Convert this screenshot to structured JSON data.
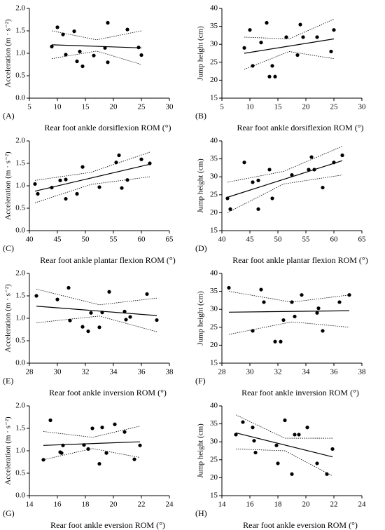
{
  "chart_data": [
    {
      "type": "scatter",
      "panel_label": "(A)",
      "xlabel": "Rear foot ankle dorsiflexion ROM (°)",
      "ylabel": "Acceleration (m · s⁻²)",
      "color": "#000000",
      "x": [
        9,
        10,
        11,
        11.5,
        13,
        13.5,
        14,
        14.5,
        16.5,
        18.5,
        19,
        19,
        22.5,
        24.5,
        25
      ],
      "values": [
        1.15,
        1.58,
        1.42,
        0.97,
        1.49,
        0.82,
        1.04,
        0.71,
        0.95,
        1.12,
        1.68,
        0.8,
        1.53,
        1.13,
        0.96
      ],
      "fit": {
        "x": [
          9,
          25
        ],
        "values": [
          1.19,
          1.12
        ]
      },
      "ci": {
        "x": [
          9,
          17,
          25
        ],
        "upper": [
          1.5,
          1.3,
          1.5
        ],
        "lower": [
          0.88,
          1.05,
          0.75
        ]
      },
      "xlim": [
        5,
        30
      ],
      "xticks": [
        5,
        10,
        15,
        20,
        25,
        30
      ],
      "ylim": [
        0,
        2
      ],
      "yticks": [
        {
          "value": 0,
          "label": "0.0"
        },
        0.5,
        {
          "value": 1,
          "label": "1.0"
        },
        1.5,
        {
          "value": 2,
          "label": "2.0"
        }
      ]
    },
    {
      "type": "scatter",
      "panel_label": "(B)",
      "xlabel": "Rear foot ankle dorsiflexion ROM (°)",
      "ylabel": "Jump height (cm)",
      "color": "#000000",
      "x": [
        9,
        10,
        10.5,
        12,
        13,
        13.5,
        14,
        14.5,
        16.5,
        18.5,
        19,
        19.5,
        22,
        24.5,
        25
      ],
      "values": [
        29,
        34,
        24,
        30.5,
        36,
        21,
        24,
        21,
        32,
        27,
        35.5,
        32,
        32,
        28,
        34
      ],
      "fit": {
        "x": [
          9,
          25
        ],
        "values": [
          27.5,
          31.5
        ]
      },
      "ci": {
        "x": [
          9,
          17,
          25
        ],
        "upper": [
          32,
          31.5,
          37
        ],
        "lower": [
          23,
          28,
          26
        ]
      },
      "xlim": [
        5,
        30
      ],
      "xticks": [
        5,
        10,
        15,
        20,
        25,
        30
      ],
      "ylim": [
        15,
        40
      ],
      "yticks": [
        15,
        20,
        25,
        30,
        35,
        40
      ]
    },
    {
      "type": "scatter",
      "panel_label": "(C)",
      "xlabel": "Rear foot ankle plantar flexion ROM (°)",
      "ylabel": "Acceleration (m · s⁻²)",
      "color": "#000000",
      "x": [
        41,
        41.5,
        44,
        45.5,
        46.5,
        46.5,
        48.5,
        49.5,
        52.5,
        55.5,
        56,
        56.5,
        57.5,
        60,
        61.5
      ],
      "values": [
        1.04,
        0.82,
        0.96,
        1.12,
        1.14,
        0.71,
        0.82,
        1.42,
        0.97,
        1.52,
        1.68,
        0.95,
        1.13,
        1.59,
        1.5
      ],
      "fit": {
        "x": [
          41,
          61.5
        ],
        "values": [
          0.88,
          1.48
        ]
      },
      "ci": {
        "x": [
          41,
          51,
          61.5
        ],
        "upper": [
          1.12,
          1.3,
          1.75
        ],
        "lower": [
          0.62,
          1.03,
          1.2
        ]
      },
      "xlim": [
        40,
        65
      ],
      "xticks": [
        40,
        45,
        50,
        55,
        60,
        65
      ],
      "ylim": [
        0,
        2
      ],
      "yticks": [
        {
          "value": 0,
          "label": "0.0"
        },
        0.5,
        {
          "value": 1,
          "label": "1.0"
        },
        1.5,
        {
          "value": 2,
          "label": "2.0"
        }
      ]
    },
    {
      "type": "scatter",
      "panel_label": "(D)",
      "xlabel": "Rear foot ankle plantar flexion ROM (°)",
      "ylabel": "Jump height (cm)",
      "color": "#000000",
      "x": [
        41,
        41.5,
        44,
        45.5,
        46.5,
        46.5,
        48.5,
        49,
        52.5,
        55.5,
        56,
        56.5,
        58,
        60,
        61.5
      ],
      "values": [
        24,
        21,
        34,
        28.5,
        29,
        21,
        32,
        24,
        30.5,
        32,
        35.5,
        32,
        27,
        34,
        36
      ],
      "fit": {
        "x": [
          41,
          61.5
        ],
        "values": [
          24.3,
          34.5
        ]
      },
      "ci": {
        "x": [
          41,
          51,
          61.5
        ],
        "upper": [
          28.5,
          31.5,
          38.5
        ],
        "lower": [
          20,
          28,
          30.5
        ]
      },
      "xlim": [
        40,
        65
      ],
      "xticks": [
        40,
        45,
        50,
        55,
        60,
        65
      ],
      "ylim": [
        15,
        40
      ],
      "yticks": [
        15,
        20,
        25,
        30,
        35,
        40
      ]
    },
    {
      "type": "scatter",
      "panel_label": "(E)",
      "xlabel": "Rear foot ankle inversion ROM (°)",
      "ylabel": "Acceleration (m · s⁻²)",
      "color": "#000000",
      "x": [
        28.5,
        30,
        30.8,
        30.9,
        31.8,
        32.2,
        32.4,
        33,
        33.2,
        33.7,
        34.8,
        34.9,
        35.2,
        36.4,
        37.1
      ],
      "values": [
        1.5,
        1.42,
        1.68,
        0.95,
        0.81,
        0.71,
        1.12,
        0.8,
        1.13,
        1.59,
        1.15,
        0.97,
        1.03,
        1.54,
        0.96
      ],
      "fit": {
        "x": [
          28.5,
          37.1
        ],
        "values": [
          1.27,
          1.06
        ]
      },
      "ci": {
        "x": [
          28.5,
          33,
          37.1
        ],
        "upper": [
          1.65,
          1.3,
          1.45
        ],
        "lower": [
          0.9,
          1.05,
          0.7
        ]
      },
      "xlim": [
        28,
        38
      ],
      "xticks": [
        28,
        30,
        32,
        34,
        36,
        38
      ],
      "ylim": [
        0,
        2
      ],
      "yticks": [
        {
          "value": 0,
          "label": "0.0"
        },
        0.5,
        {
          "value": 1,
          "label": "1.0"
        },
        1.5,
        {
          "value": 2,
          "label": "2.0"
        }
      ]
    },
    {
      "type": "scatter",
      "panel_label": "(F)",
      "xlabel": "Rear foot ankle inversion ROM (°)",
      "ylabel": "Jump height (cm)",
      "color": "#000000",
      "x": [
        28.5,
        30.2,
        30.8,
        31,
        31.8,
        32.2,
        32.4,
        33,
        33.2,
        33.7,
        34.8,
        34.9,
        35.2,
        36.4,
        37.1
      ],
      "values": [
        36,
        24,
        35.5,
        32,
        21,
        21,
        27,
        32,
        28,
        34,
        29,
        30.3,
        24,
        32,
        34
      ],
      "fit": {
        "x": [
          28.5,
          37.1
        ],
        "values": [
          29.2,
          29.6
        ]
      },
      "ci": {
        "x": [
          28.5,
          33,
          37.1
        ],
        "upper": [
          35,
          32,
          34
        ],
        "lower": [
          23,
          26.5,
          25
        ]
      },
      "xlim": [
        28,
        38
      ],
      "xticks": [
        28,
        30,
        32,
        34,
        36,
        38
      ],
      "ylim": [
        15,
        40
      ],
      "yticks": [
        15,
        20,
        25,
        30,
        35,
        40
      ]
    },
    {
      "type": "scatter",
      "panel_label": "(G)",
      "xlabel": "Rear foot ankle eversion ROM (°)",
      "ylabel": "Acceleration (m · s⁻²)",
      "color": "#000000",
      "x": [
        15,
        15.5,
        16.2,
        16.3,
        16.4,
        17.9,
        18.2,
        18.5,
        19,
        19.2,
        19.5,
        20.1,
        20.8,
        21.5,
        21.9
      ],
      "values": [
        0.8,
        1.68,
        0.97,
        0.95,
        1.12,
        1.13,
        1.04,
        1.5,
        0.71,
        1.52,
        0.95,
        1.59,
        1.42,
        0.81,
        1.12
      ],
      "fit": {
        "x": [
          15,
          21.9
        ],
        "values": [
          1.12,
          1.2
        ]
      },
      "ci": {
        "x": [
          15,
          18.5,
          21.9
        ],
        "upper": [
          1.43,
          1.3,
          1.55
        ],
        "lower": [
          0.8,
          1.05,
          0.85
        ]
      },
      "xlim": [
        14,
        24
      ],
      "xticks": [
        14,
        16,
        18,
        20,
        22,
        24
      ],
      "ylim": [
        0,
        2
      ],
      "yticks": [
        {
          "value": 0,
          "label": "0.0"
        },
        0.5,
        {
          "value": 1,
          "label": "1.0"
        },
        1.5,
        {
          "value": 2,
          "label": "2.0"
        }
      ]
    },
    {
      "type": "scatter",
      "panel_label": "(H)",
      "xlabel": "Rear foot ankle eversion ROM (°)",
      "ylabel": "Jump height (cm)",
      "color": "#000000",
      "x": [
        15,
        15.5,
        16.2,
        16.3,
        16.4,
        17.9,
        18,
        18.5,
        19,
        19.2,
        19.5,
        20.1,
        20.8,
        21.5,
        21.9
      ],
      "values": [
        32,
        35.5,
        34,
        30.3,
        27,
        29,
        24,
        36,
        21,
        32,
        32,
        34,
        24,
        21,
        28
      ],
      "fit": {
        "x": [
          15,
          21.9
        ],
        "values": [
          32.5,
          25.8
        ]
      },
      "ci": {
        "x": [
          15,
          18.5,
          21.9
        ],
        "upper": [
          37.5,
          31,
          31
        ],
        "lower": [
          28,
          27.5,
          20.5
        ]
      },
      "xlim": [
        14,
        24
      ],
      "xticks": [
        14,
        16,
        18,
        20,
        22,
        24
      ],
      "ylim": [
        15,
        40
      ],
      "yticks": [
        15,
        20,
        25,
        30,
        35,
        40
      ]
    }
  ]
}
